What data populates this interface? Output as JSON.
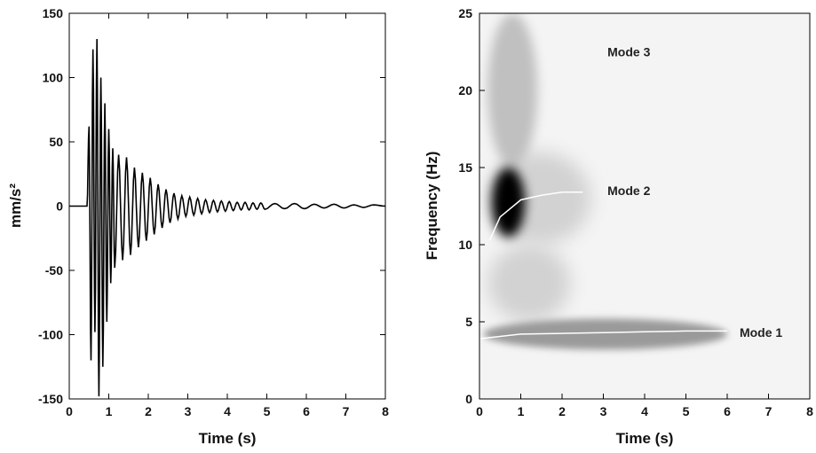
{
  "chart_data": [
    {
      "type": "line",
      "title": "",
      "xlabel": "Time (s)",
      "ylabel": "mm/s²",
      "xlim": [
        0,
        8
      ],
      "ylim": [
        -150,
        150
      ],
      "xticks": [
        "0",
        "1",
        "2",
        "3",
        "4",
        "5",
        "6",
        "7",
        "8"
      ],
      "yticks": [
        "150",
        "100",
        "50",
        "0",
        "-50",
        "-100",
        "-150"
      ],
      "grid": false,
      "series": [
        {
          "color": "#000000",
          "x": [
            0,
            0.45,
            0.5,
            0.55,
            0.6,
            0.65,
            0.7,
            0.75,
            0.8,
            0.85,
            0.9,
            0.95,
            1.0,
            1.05,
            1.1,
            1.15,
            1.25,
            1.35,
            1.45,
            1.55,
            1.65,
            1.75,
            1.85,
            1.95,
            2.05,
            2.15,
            2.25,
            2.35,
            2.45,
            2.55,
            2.65,
            2.75,
            2.85,
            2.95,
            3.05,
            3.15,
            3.25,
            3.35,
            3.45,
            3.55,
            3.65,
            3.75,
            3.85,
            3.95,
            4.05,
            4.15,
            4.25,
            4.35,
            4.45,
            4.55,
            4.65,
            4.75,
            4.85,
            4.95,
            5.2,
            5.45,
            5.7,
            5.95,
            6.2,
            6.45,
            6.7,
            6.95,
            7.2,
            7.45,
            7.7,
            8.0
          ],
          "y": [
            0,
            0,
            62,
            -120,
            122,
            -98,
            130,
            -148,
            100,
            -125,
            80,
            -90,
            60,
            -60,
            45,
            -48,
            40,
            -42,
            38,
            -38,
            30,
            -32,
            26,
            -27,
            22,
            -22,
            17,
            -17,
            13,
            -13,
            10,
            -10,
            8,
            -8,
            7,
            -7,
            6,
            -6,
            5,
            -5,
            4.5,
            -4.5,
            4,
            -4,
            3.5,
            -3.5,
            3,
            -3,
            3,
            -3,
            2.5,
            -2.5,
            2.5,
            -2.5,
            2,
            -2,
            2,
            -2,
            1.5,
            -1.5,
            1.5,
            -1.5,
            1,
            -1,
            1,
            0
          ]
        }
      ]
    },
    {
      "type": "heatmap",
      "title": "",
      "xlabel": "Time (s)",
      "ylabel": "Frequency (Hz)",
      "xlim": [
        0,
        8
      ],
      "ylim": [
        0,
        25
      ],
      "xticks": [
        "0",
        "1",
        "2",
        "3",
        "4",
        "5",
        "6",
        "7",
        "8"
      ],
      "yticks": [
        "25",
        "20",
        "15",
        "10",
        "5",
        "0"
      ],
      "grid": false,
      "colormap": "grayscale (dark = high energy)",
      "annotations": [
        {
          "text": "Mode 3",
          "x": 3.1,
          "y": 22.5
        },
        {
          "text": "Mode 2",
          "x": 3.1,
          "y": 13.5
        },
        {
          "text": "Mode 1",
          "x": 6.3,
          "y": 4.3
        }
      ],
      "ridges": [
        {
          "name": "Mode 1",
          "x": [
            0,
            1,
            2,
            3,
            4,
            5,
            6
          ],
          "y": [
            3.9,
            4.2,
            4.25,
            4.3,
            4.35,
            4.4,
            4.4
          ]
        },
        {
          "name": "Mode 2",
          "x": [
            0.25,
            0.5,
            1.0,
            1.5,
            2.0,
            2.5
          ],
          "y": [
            10.3,
            11.8,
            12.9,
            13.2,
            13.4,
            13.4
          ]
        }
      ],
      "energy_regions": [
        {
          "x": [
            0.3,
            1.1
          ],
          "y": [
            10.5,
            15
          ],
          "intensity": "very high"
        },
        {
          "x": [
            0.1,
            6.0
          ],
          "y": [
            3.2,
            5.2
          ],
          "intensity": "medium"
        },
        {
          "x": [
            0.2,
            2.7
          ],
          "y": [
            10,
            16
          ],
          "intensity": "low"
        },
        {
          "x": [
            0.2,
            1.4
          ],
          "y": [
            15,
            25
          ],
          "intensity": "low-medium"
        },
        {
          "x": [
            0.2,
            2.2
          ],
          "y": [
            5,
            10
          ],
          "intensity": "low"
        }
      ]
    }
  ]
}
